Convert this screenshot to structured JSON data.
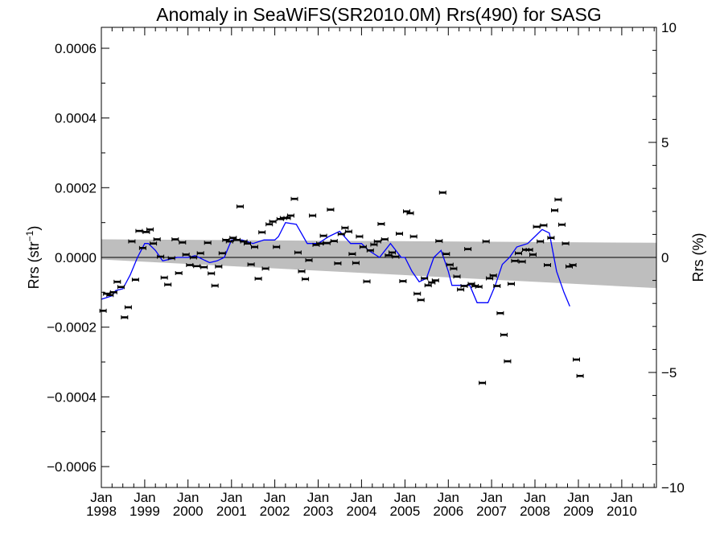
{
  "chart_data": {
    "type": "scatter",
    "title": "Anomaly in SeaWiFS(SR2010.0M) Rrs(490) for SASG",
    "ylabel_left": "Rrs (str",
    "ylabel_left_sup": "−1",
    "ylabel_left_close": ")",
    "ylabel_right": "Rrs (%)",
    "xlim": [
      "1998-01-01",
      "2010-10-20"
    ],
    "ylim_left": [
      -0.00066,
      0.00066
    ],
    "ylim_right": [
      -10,
      10
    ],
    "x_ticks": [
      {
        "date": "1998-01-01",
        "label_top": "Jan",
        "label_bottom": "1998"
      },
      {
        "date": "1999-01-01",
        "label_top": "Jan",
        "label_bottom": "1999"
      },
      {
        "date": "2000-01-01",
        "label_top": "Jan",
        "label_bottom": "2000"
      },
      {
        "date": "2001-01-01",
        "label_top": "Jan",
        "label_bottom": "2001"
      },
      {
        "date": "2002-01-01",
        "label_top": "Jan",
        "label_bottom": "2002"
      },
      {
        "date": "2003-01-01",
        "label_top": "Jan",
        "label_bottom": "2003"
      },
      {
        "date": "2004-01-01",
        "label_top": "Jan",
        "label_bottom": "2004"
      },
      {
        "date": "2005-01-01",
        "label_top": "Jan",
        "label_bottom": "2005"
      },
      {
        "date": "2006-01-01",
        "label_top": "Jan",
        "label_bottom": "2006"
      },
      {
        "date": "2007-01-01",
        "label_top": "Jan",
        "label_bottom": "2007"
      },
      {
        "date": "2008-01-01",
        "label_top": "Jan",
        "label_bottom": "2008"
      },
      {
        "date": "2009-01-01",
        "label_top": "Jan",
        "label_bottom": "2009"
      },
      {
        "date": "2010-01-01",
        "label_top": "Jan",
        "label_bottom": "2010"
      }
    ],
    "y_ticks_left": [
      {
        "value": 0.0006,
        "label": "0.0006"
      },
      {
        "value": 0.0004,
        "label": "0.0004"
      },
      {
        "value": 0.0002,
        "label": "0.0002"
      },
      {
        "value": 0.0,
        "label": "0.0000"
      },
      {
        "value": -0.0002,
        "label": "−0.0002"
      },
      {
        "value": -0.0004,
        "label": "−0.0004"
      },
      {
        "value": -0.0006,
        "label": "−0.0006"
      }
    ],
    "y_ticks_right": [
      {
        "value": 10,
        "label": "10"
      },
      {
        "value": 5,
        "label": "5"
      },
      {
        "value": 0,
        "label": "0"
      },
      {
        "value": -5,
        "label": "−5"
      },
      {
        "value": -10,
        "label": "−10"
      }
    ],
    "zero_line": 0,
    "uncertainty_band": {
      "color": "#bebebe",
      "upper": [
        [
          "1998-01-01",
          5.2e-05
        ],
        [
          "2010-10-20",
          4.2e-05
        ]
      ],
      "lower": [
        [
          "1998-01-01",
          -6e-06
        ],
        [
          "2010-10-20",
          -8.8e-05
        ]
      ]
    },
    "series": [
      {
        "kind": "points",
        "marker": "error-bar",
        "color": "#000000",
        "points": [
          [
            "1998-01-15",
            -0.000153
          ],
          [
            "1998-02-15",
            -0.000104
          ],
          [
            "1998-03-15",
            -0.000108
          ],
          [
            "1998-04-15",
            -0.0001
          ],
          [
            "1998-05-15",
            -7e-05
          ],
          [
            "1998-06-15",
            -8.5e-05
          ],
          [
            "1998-07-15",
            -0.000172
          ],
          [
            "1998-08-15",
            -0.000143
          ],
          [
            "1998-09-15",
            4.6e-05
          ],
          [
            "1998-10-15",
            -6.4e-05
          ],
          [
            "1998-11-15",
            7.6e-05
          ],
          [
            "1998-12-15",
            2.7e-05
          ],
          [
            "1999-01-15",
            7.3e-05
          ],
          [
            "1999-02-15",
            8e-05
          ],
          [
            "1999-03-15",
            4e-05
          ],
          [
            "1999-04-15",
            5.2e-05
          ],
          [
            "1999-05-15",
            2e-06
          ],
          [
            "1999-06-15",
            -5.8e-05
          ],
          [
            "1999-07-15",
            -7.8e-05
          ],
          [
            "1999-08-15",
            -2e-06
          ],
          [
            "1999-09-15",
            5.2e-05
          ],
          [
            "1999-10-15",
            -4.5e-05
          ],
          [
            "1999-11-15",
            4.3e-05
          ],
          [
            "1999-12-15",
            8e-06
          ],
          [
            "2000-01-15",
            -2.2e-05
          ],
          [
            "2000-02-15",
            0.0
          ],
          [
            "2000-03-15",
            -2.5e-05
          ],
          [
            "2000-04-15",
            1.2e-05
          ],
          [
            "2000-05-15",
            -2.8e-05
          ],
          [
            "2000-06-15",
            4.2e-05
          ],
          [
            "2000-07-15",
            -4.6e-05
          ],
          [
            "2000-08-15",
            -8.1e-05
          ],
          [
            "2000-09-15",
            -2.6e-05
          ],
          [
            "2000-10-15",
            1.2e-05
          ],
          [
            "2000-11-15",
            5e-05
          ],
          [
            "2000-12-15",
            4.6e-05
          ],
          [
            "2001-01-15",
            5.6e-05
          ],
          [
            "2001-02-15",
            5e-05
          ],
          [
            "2001-03-15",
            0.000146
          ],
          [
            "2001-04-15",
            4.6e-05
          ],
          [
            "2001-05-15",
            4e-05
          ],
          [
            "2001-06-15",
            -2e-05
          ],
          [
            "2001-07-15",
            3e-05
          ],
          [
            "2001-08-15",
            -6.1e-05
          ],
          [
            "2001-09-15",
            7.2e-05
          ],
          [
            "2001-10-15",
            -3.2e-05
          ],
          [
            "2001-11-15",
            9.5e-05
          ],
          [
            "2001-12-15",
            0.000103
          ],
          [
            "2002-01-15",
            3e-05
          ],
          [
            "2002-02-15",
            0.00011
          ],
          [
            "2002-03-15",
            0.000113
          ],
          [
            "2002-04-15",
            0.000113
          ],
          [
            "2002-05-15",
            0.00012
          ],
          [
            "2002-06-15",
            0.000168
          ],
          [
            "2002-07-15",
            1.4e-05
          ],
          [
            "2002-08-15",
            -4e-05
          ],
          [
            "2002-09-15",
            -6.2e-05
          ],
          [
            "2002-10-15",
            -8e-06
          ],
          [
            "2002-11-15",
            0.00012
          ],
          [
            "2002-12-15",
            3.6e-05
          ],
          [
            "2003-01-15",
            4e-05
          ],
          [
            "2003-02-15",
            6.2e-05
          ],
          [
            "2003-03-15",
            4.1e-05
          ],
          [
            "2003-04-15",
            0.000137
          ],
          [
            "2003-05-15",
            4.7e-05
          ],
          [
            "2003-06-15",
            -1.7e-05
          ],
          [
            "2003-07-15",
            6.7e-05
          ],
          [
            "2003-08-15",
            8.5e-05
          ],
          [
            "2003-09-15",
            7.4e-05
          ],
          [
            "2003-10-15",
            1e-05
          ],
          [
            "2003-11-15",
            -1.6e-05
          ],
          [
            "2003-12-15",
            6e-05
          ],
          [
            "2004-01-15",
            3e-05
          ],
          [
            "2004-02-15",
            -6.9e-05
          ],
          [
            "2004-03-15",
            2e-05
          ],
          [
            "2004-04-15",
            3.7e-05
          ],
          [
            "2004-05-15",
            4.6e-05
          ],
          [
            "2004-06-15",
            9.6e-05
          ],
          [
            "2004-07-15",
            5.2e-05
          ],
          [
            "2004-08-15",
            6e-06
          ],
          [
            "2004-09-15",
            1.4e-05
          ],
          [
            "2004-10-15",
            2e-06
          ],
          [
            "2004-11-15",
            6.8e-05
          ],
          [
            "2004-12-15",
            -6.8e-05
          ],
          [
            "2005-01-15",
            0.000132
          ],
          [
            "2005-02-15",
            0.000127
          ],
          [
            "2005-03-15",
            6e-05
          ],
          [
            "2005-04-15",
            -0.000104
          ],
          [
            "2005-05-15",
            -0.000122
          ],
          [
            "2005-06-15",
            -6e-05
          ],
          [
            "2005-07-15",
            -8e-05
          ],
          [
            "2005-08-15",
            -7.2e-05
          ],
          [
            "2005-09-15",
            -6.6e-05
          ],
          [
            "2005-10-15",
            4.7e-05
          ],
          [
            "2005-11-15",
            0.000186
          ],
          [
            "2005-12-15",
            1e-05
          ],
          [
            "2006-01-15",
            -2.1e-05
          ],
          [
            "2006-02-15",
            -3.2e-05
          ],
          [
            "2006-03-15",
            -5.5e-05
          ],
          [
            "2006-04-15",
            -9.2e-05
          ],
          [
            "2006-05-15",
            -8.2e-05
          ],
          [
            "2006-06-15",
            2.4e-05
          ],
          [
            "2006-07-15",
            -7.6e-05
          ],
          [
            "2006-08-15",
            -8.2e-05
          ],
          [
            "2006-09-15",
            -8.4e-05
          ],
          [
            "2006-10-15",
            -0.00036
          ],
          [
            "2006-11-15",
            4.6e-05
          ],
          [
            "2006-12-15",
            -6e-05
          ],
          [
            "2007-01-15",
            -5.2e-05
          ],
          [
            "2007-02-15",
            -8.2e-05
          ],
          [
            "2007-03-15",
            -0.00016
          ],
          [
            "2007-04-15",
            -0.000222
          ],
          [
            "2007-05-15",
            -0.000298
          ],
          [
            "2007-06-15",
            -7.6e-05
          ],
          [
            "2007-07-15",
            -1e-05
          ],
          [
            "2007-08-15",
            1.2e-05
          ],
          [
            "2007-09-15",
            -1.2e-05
          ],
          [
            "2007-10-15",
            2.2e-05
          ],
          [
            "2007-11-15",
            2.2e-05
          ],
          [
            "2007-12-15",
            8e-06
          ],
          [
            "2008-01-15",
            8.8e-05
          ],
          [
            "2008-02-15",
            4.6e-05
          ],
          [
            "2008-03-15",
            9.2e-05
          ],
          [
            "2008-04-15",
            -2.2e-05
          ],
          [
            "2008-05-15",
            5.6e-05
          ],
          [
            "2008-06-15",
            0.000135
          ],
          [
            "2008-07-15",
            0.000166
          ],
          [
            "2008-08-15",
            9.4e-05
          ],
          [
            "2008-09-15",
            4e-05
          ],
          [
            "2008-10-15",
            -2.6e-05
          ],
          [
            "2008-11-15",
            -2.2e-05
          ],
          [
            "2008-12-15",
            -0.000293
          ],
          [
            "2009-01-15",
            -0.00034
          ]
        ]
      },
      {
        "kind": "line",
        "color": "#0000ff",
        "points": [
          [
            "1998-01-01",
            -0.00012
          ],
          [
            "1998-04-01",
            -0.00011
          ],
          [
            "1998-05-01",
            -9.5e-05
          ],
          [
            "1998-07-01",
            -9e-05
          ],
          [
            "1998-09-01",
            -5e-05
          ],
          [
            "1998-11-01",
            0.0
          ],
          [
            "1999-01-01",
            4e-05
          ],
          [
            "1999-02-01",
            4e-05
          ],
          [
            "1999-04-01",
            2e-05
          ],
          [
            "1999-06-01",
            -1e-05
          ],
          [
            "1999-08-01",
            -5e-06
          ],
          [
            "1999-10-01",
            0.0
          ],
          [
            "2000-01-01",
            0.0
          ],
          [
            "2000-03-01",
            5e-06
          ],
          [
            "2000-05-01",
            -5e-06
          ],
          [
            "2000-07-01",
            -1.5e-05
          ],
          [
            "2000-09-01",
            -1e-05
          ],
          [
            "2000-11-01",
            0.0
          ],
          [
            "2001-01-01",
            5e-05
          ],
          [
            "2001-04-01",
            5e-05
          ],
          [
            "2001-07-01",
            4e-05
          ],
          [
            "2001-10-01",
            5e-05
          ],
          [
            "2002-01-01",
            5e-05
          ],
          [
            "2002-02-01",
            6e-05
          ],
          [
            "2002-04-01",
            0.0001
          ],
          [
            "2002-07-01",
            9.5e-05
          ],
          [
            "2002-10-01",
            4e-05
          ],
          [
            "2003-01-01",
            4e-05
          ],
          [
            "2003-04-01",
            6e-05
          ],
          [
            "2003-07-01",
            7.5e-05
          ],
          [
            "2003-10-01",
            4e-05
          ],
          [
            "2004-01-01",
            4e-05
          ],
          [
            "2004-03-01",
            2e-05
          ],
          [
            "2004-06-01",
            0.0
          ],
          [
            "2004-09-01",
            4e-05
          ],
          [
            "2004-12-01",
            0.0
          ],
          [
            "2005-01-01",
            0.0
          ],
          [
            "2005-03-01",
            -4e-05
          ],
          [
            "2005-05-01",
            -7e-05
          ],
          [
            "2005-07-01",
            -6e-05
          ],
          [
            "2005-09-01",
            0.0
          ],
          [
            "2005-11-01",
            2e-05
          ],
          [
            "2006-01-01",
            -4e-05
          ],
          [
            "2006-02-01",
            -8e-05
          ],
          [
            "2006-05-01",
            -8e-05
          ],
          [
            "2006-07-01",
            -8e-05
          ],
          [
            "2006-09-01",
            -0.00013
          ],
          [
            "2006-12-01",
            -0.00013
          ],
          [
            "2007-02-01",
            -8e-05
          ],
          [
            "2007-04-01",
            -2e-05
          ],
          [
            "2007-06-01",
            0.0
          ],
          [
            "2007-08-01",
            3e-05
          ],
          [
            "2007-11-01",
            4e-05
          ],
          [
            "2008-01-01",
            6e-05
          ],
          [
            "2008-03-01",
            8e-05
          ],
          [
            "2008-05-01",
            7e-05
          ],
          [
            "2008-07-01",
            -4e-05
          ],
          [
            "2008-09-01",
            -0.0001
          ],
          [
            "2008-10-20",
            -0.00014
          ]
        ]
      }
    ]
  }
}
